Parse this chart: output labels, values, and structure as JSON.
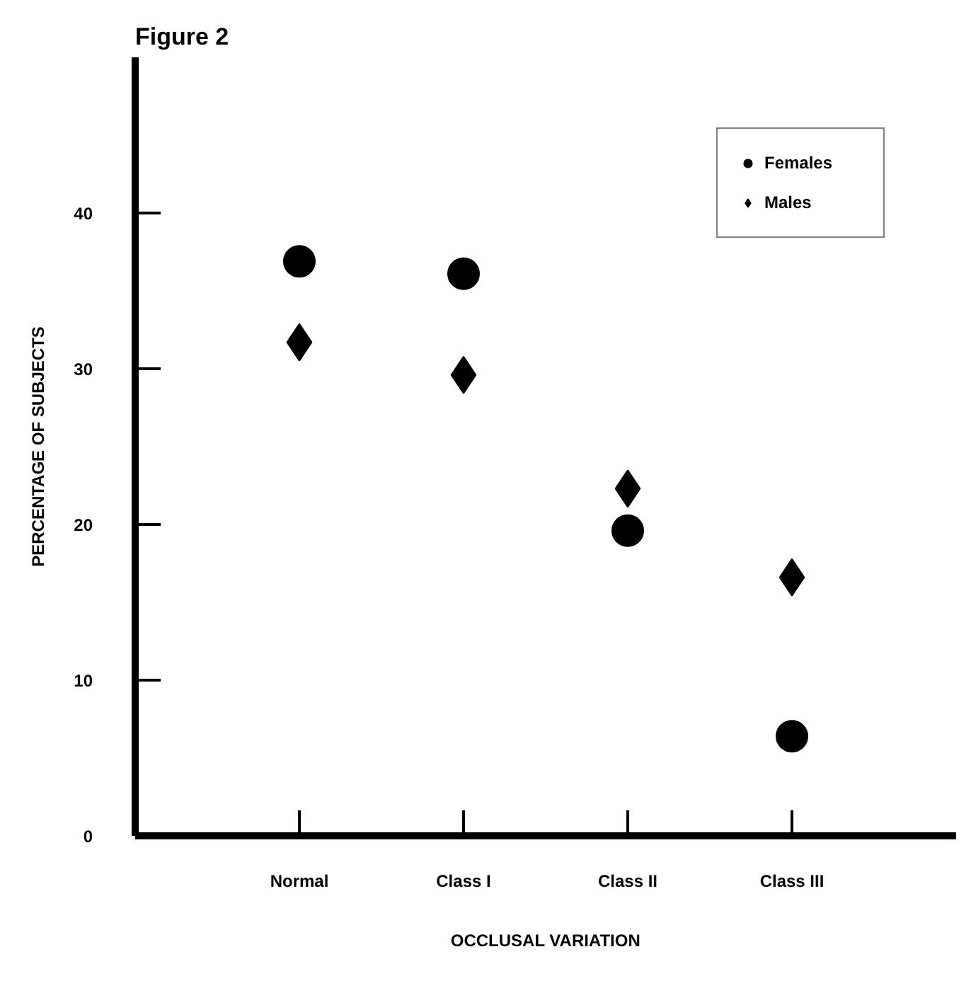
{
  "chart_data": {
    "type": "scatter",
    "title": "Figure 2",
    "xlabel": "OCCLUSAL VARIATION",
    "ylabel": "PERCENTAGE OF SUBJECTS",
    "categories": [
      "Normal",
      "Class I",
      "Class II",
      "Class III"
    ],
    "series": [
      {
        "name": "Females",
        "color": "#000000",
        "marker": "circle",
        "values": [
          36.9,
          36.1,
          19.6,
          6.4
        ]
      },
      {
        "name": "Males",
        "color": "#000000",
        "marker": "diamond",
        "values": [
          31.7,
          29.6,
          22.3,
          16.6
        ]
      }
    ],
    "ylim": [
      0,
      50
    ],
    "yticks": [
      0,
      10,
      20,
      30,
      40
    ],
    "grid": false,
    "legend": "top right"
  }
}
